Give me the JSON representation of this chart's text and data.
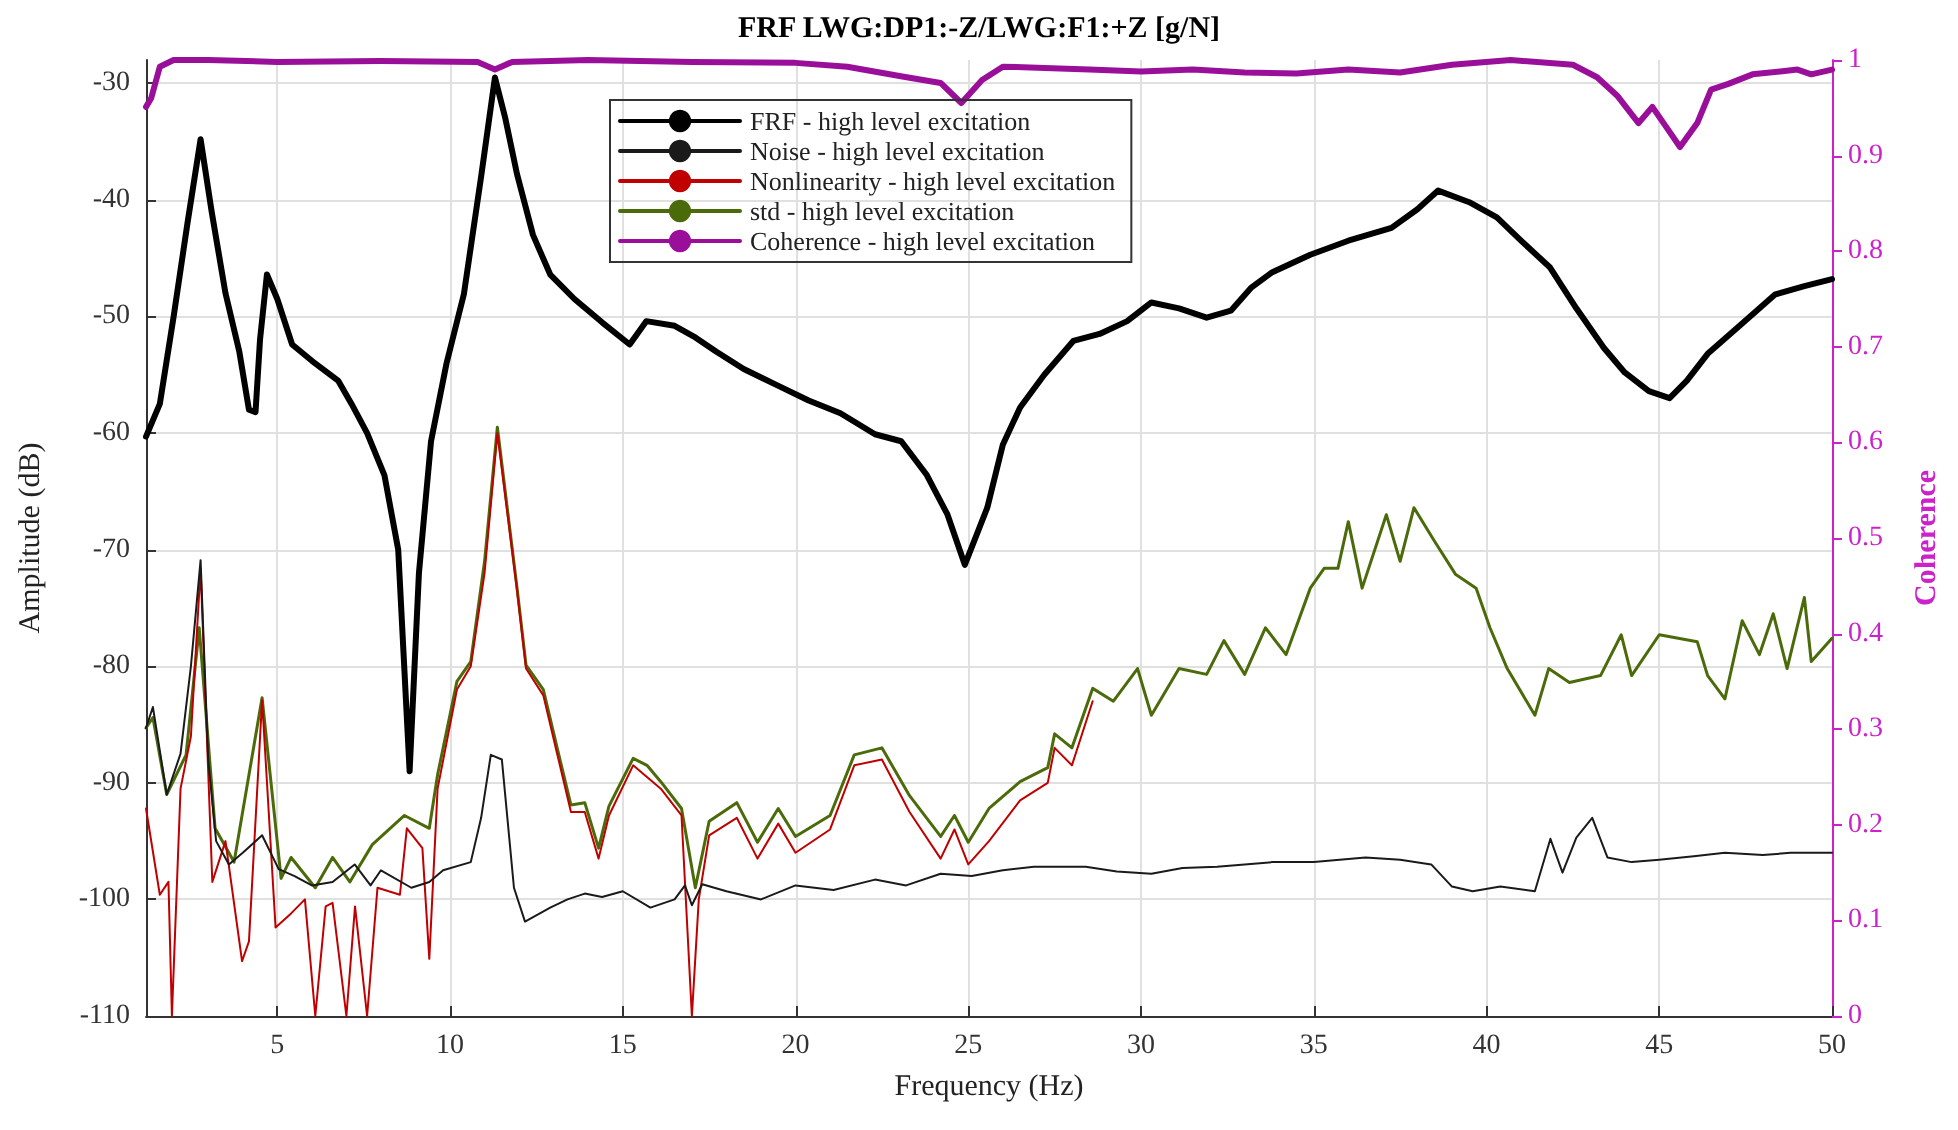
{
  "chart_data": {
    "type": "line",
    "title": "FRF LWG:DP1:-Z/LWG:F1:+Z [g/N]",
    "xlabel": "Frequency (Hz)",
    "ylabel": "Amplitude (dB)",
    "y2label": "Coherence",
    "xlim": [
      1.2,
      50
    ],
    "xticks": [
      5,
      10,
      15,
      20,
      25,
      30,
      35,
      40,
      45,
      50
    ],
    "ylim": [
      -110,
      -28
    ],
    "yticks": [
      -110,
      -100,
      -90,
      -80,
      -70,
      -60,
      -50,
      -40,
      -30
    ],
    "y2lim": [
      0,
      1
    ],
    "y2ticks": [
      0,
      0.1,
      0.2,
      0.3,
      0.4,
      0.5,
      0.6,
      0.7,
      0.8,
      0.9,
      1
    ],
    "grid": true,
    "legend": "top",
    "marker": "none",
    "line_style": "solid",
    "series": [
      {
        "name": "FRF - high level excitation",
        "color": "#000000",
        "x": [
          1.2,
          1.6,
          2.0,
          2.4,
          2.78,
          3.1,
          3.5,
          3.9,
          4.18,
          4.37,
          4.5,
          4.7,
          5.0,
          5.43,
          6.0,
          6.76,
          7.15,
          7.6,
          8.1,
          8.5,
          8.83,
          9.1,
          9.45,
          9.9,
          10.4,
          10.9,
          11.3,
          11.6,
          11.94,
          12.4,
          12.9,
          13.6,
          14.4,
          15.2,
          15.68,
          16.5,
          17.1,
          17.7,
          18.5,
          19.4,
          20.38,
          21.3,
          22.3,
          23.06,
          23.8,
          24.4,
          24.9,
          25.55,
          26.0,
          26.5,
          27.2,
          28.04,
          28.8,
          29.6,
          30.3,
          31.1,
          31.9,
          32.6,
          33.2,
          33.8,
          34.9,
          36.0,
          37.25,
          38.0,
          38.6,
          39.5,
          40.3,
          41.0,
          41.84,
          42.6,
          43.4,
          44.0,
          44.7,
          45.3,
          45.8,
          46.4,
          47.4,
          48.36,
          49.2,
          50.0
        ],
        "values": [
          -60.3,
          -57.5,
          -50,
          -42,
          -34.8,
          -41,
          -48,
          -53,
          -58,
          -58.2,
          -52,
          -46.4,
          -48.5,
          -52.4,
          -53.8,
          -55.5,
          -57.5,
          -60,
          -63.6,
          -70,
          -89,
          -72,
          -60.7,
          -54,
          -48.1,
          -38,
          -29.5,
          -33,
          -37.8,
          -43,
          -46.4,
          -48.5,
          -50.5,
          -52.4,
          -50.4,
          -50.8,
          -51.8,
          -53,
          -54.5,
          -55.8,
          -57.2,
          -58.3,
          -60.1,
          -60.7,
          -63.6,
          -67,
          -71.3,
          -66.4,
          -61,
          -57.8,
          -55,
          -52.1,
          -51.5,
          -50.4,
          -48.8,
          -49.3,
          -50.1,
          -49.5,
          -47.5,
          -46.2,
          -44.7,
          -43.5,
          -42.4,
          -40.8,
          -39.2,
          -40.2,
          -41.5,
          -43.5,
          -45.8,
          -49.3,
          -52.7,
          -54.8,
          -56.4,
          -57,
          -55.5,
          -53.2,
          -50.6,
          -48.1,
          -47.4,
          -46.8
        ]
      },
      {
        "name": "Noise - high level excitation",
        "color": "#1a1a1a",
        "x": [
          1.2,
          1.4,
          1.8,
          2.2,
          2.5,
          2.78,
          3.0,
          3.23,
          3.6,
          4.0,
          4.56,
          5.04,
          5.5,
          6.0,
          6.6,
          7.24,
          7.7,
          8.0,
          8.88,
          9.4,
          9.8,
          10.6,
          10.9,
          11.18,
          11.5,
          11.85,
          12.17,
          12.9,
          13.4,
          13.9,
          14.4,
          15.0,
          15.8,
          16.5,
          16.8,
          17.0,
          17.3,
          18.0,
          19.0,
          20.0,
          21.1,
          22.3,
          23.2,
          24.2,
          25.1,
          26.0,
          26.9,
          28.4,
          29.3,
          30.3,
          31.2,
          32.2,
          33.0,
          33.8,
          35.0,
          36.5,
          37.5,
          38.4,
          39.0,
          39.6,
          40.4,
          41.4,
          41.85,
          42.2,
          42.6,
          43.06,
          43.5,
          44.2,
          45.0,
          46.0,
          46.9,
          48.0,
          48.8,
          50.0
        ],
        "values": [
          -85.3,
          -83.5,
          -91,
          -87.5,
          -80,
          -70.9,
          -88,
          -95,
          -97,
          -96,
          -94.5,
          -97.4,
          -98,
          -98.8,
          -98.5,
          -97,
          -98.8,
          -97.5,
          -99,
          -98.5,
          -97.5,
          -96.8,
          -93,
          -87.6,
          -88,
          -99,
          -101.9,
          -100.7,
          -100,
          -99.5,
          -99.8,
          -99.3,
          -100.7,
          -100,
          -98.8,
          -100.5,
          -98.7,
          -99.3,
          -100,
          -98.8,
          -99.2,
          -98.3,
          -98.8,
          -97.8,
          -98,
          -97.5,
          -97.2,
          -97.2,
          -97.6,
          -97.8,
          -97.3,
          -97.2,
          -97,
          -96.8,
          -96.8,
          -96.4,
          -96.6,
          -97,
          -98.9,
          -99.3,
          -98.9,
          -99.3,
          -94.8,
          -97.7,
          -94.7,
          -93,
          -96.4,
          -96.8,
          -96.6,
          -96.3,
          -96,
          -96.2,
          -96,
          -96
        ]
      },
      {
        "name": "Nonlinearity - high level excitation",
        "color": "#c00000",
        "x": [
          1.2,
          1.6,
          1.85,
          1.95,
          2.2,
          2.5,
          2.78,
          3.12,
          3.5,
          3.98,
          4.18,
          4.56,
          4.95,
          5.4,
          5.8,
          6.1,
          6.4,
          6.6,
          7.0,
          7.25,
          7.6,
          7.9,
          8.55,
          8.75,
          9.2,
          9.4,
          9.64,
          10.2,
          10.6,
          11.0,
          11.37,
          11.94,
          12.2,
          12.7,
          13.1,
          13.5,
          13.9,
          14.3,
          14.6,
          15.3,
          15.7,
          16.1,
          16.7,
          17.0,
          17.2,
          17.5,
          18.3,
          18.9,
          19.5,
          20.0,
          21.0,
          21.7,
          22.5,
          23.3,
          24.2,
          24.6,
          25.0,
          25.6,
          26.5,
          27.3,
          27.5,
          28.0,
          28.6
        ],
        "values": [
          -92.2,
          -99.6,
          -98.5,
          -110,
          -90.5,
          -86,
          -71.6,
          -98.5,
          -95,
          -105.3,
          -103.6,
          -82.9,
          -102.4,
          -101.2,
          -100,
          -110,
          -100.6,
          -100.3,
          -110,
          -100.6,
          -110,
          -99,
          -99.6,
          -93.9,
          -95.6,
          -105.1,
          -90.5,
          -82,
          -80,
          -72,
          -60,
          -73.5,
          -80.2,
          -82.5,
          -87.5,
          -92.5,
          -92.5,
          -96.5,
          -92.8,
          -88.5,
          -89.5,
          -90.5,
          -92.8,
          -110,
          -100,
          -94.5,
          -93,
          -96.5,
          -93.5,
          -96,
          -94,
          -88.5,
          -88,
          -92.5,
          -96.5,
          -94,
          -97,
          -95,
          -91.5,
          -90,
          -87,
          -88.5,
          -83
        ]
      },
      {
        "name": "std - high level excitation",
        "color": "#4b6b0a",
        "x": [
          1.2,
          1.4,
          1.8,
          2.36,
          2.74,
          3.2,
          3.75,
          4.56,
          5.11,
          5.4,
          6.1,
          6.6,
          7.1,
          7.75,
          8.68,
          9.4,
          9.64,
          10.2,
          10.6,
          11.0,
          11.37,
          11.94,
          12.2,
          12.7,
          13.1,
          13.5,
          13.9,
          14.3,
          14.6,
          15.3,
          15.7,
          16.1,
          16.7,
          17.1,
          17.5,
          18.3,
          18.9,
          19.5,
          20.0,
          21.0,
          21.7,
          22.5,
          23.3,
          24.2,
          24.6,
          25.0,
          25.6,
          26.5,
          27.3,
          27.5,
          28.0,
          28.6,
          29.2,
          29.9,
          30.3,
          31.1,
          31.9,
          32.4,
          33.0,
          33.6,
          34.2,
          34.9,
          35.3,
          35.7,
          36.0,
          36.4,
          37.1,
          37.5,
          37.9,
          38.5,
          39.1,
          39.7,
          40.1,
          40.6,
          41.4,
          41.8,
          42.4,
          43.3,
          43.9,
          44.2,
          45.0,
          46.1,
          46.4,
          46.9,
          47.4,
          47.9,
          48.3,
          48.7,
          49.2,
          49.4,
          50.0
        ],
        "values": [
          -85.3,
          -84.4,
          -91,
          -87.6,
          -76.7,
          -93.9,
          -96.8,
          -82.7,
          -98.2,
          -96.4,
          -99,
          -96.4,
          -98.5,
          -95.3,
          -92.8,
          -93.9,
          -89.3,
          -81.3,
          -79.6,
          -71,
          -59.5,
          -73.3,
          -79.9,
          -82,
          -87,
          -91.9,
          -91.7,
          -95.6,
          -92,
          -87.9,
          -88.5,
          -89.9,
          -92.2,
          -99,
          -93.3,
          -91.7,
          -95.1,
          -92.2,
          -94.6,
          -92.8,
          -87.6,
          -87,
          -91.1,
          -94.6,
          -92.8,
          -95.1,
          -92.2,
          -89.9,
          -88.7,
          -85.8,
          -87,
          -81.9,
          -83,
          -80.2,
          -84.2,
          -80.2,
          -80.7,
          -77.8,
          -80.7,
          -76.7,
          -79,
          -73.3,
          -71.6,
          -71.6,
          -67.6,
          -73.3,
          -67,
          -71,
          -66.4,
          -69.3,
          -72.1,
          -73.3,
          -76.7,
          -80.2,
          -84.2,
          -80.2,
          -81.4,
          -80.8,
          -77.3,
          -80.8,
          -77.3,
          -77.9,
          -80.8,
          -82.8,
          -76.1,
          -79,
          -75.5,
          -80.2,
          -74.1,
          -79.6,
          -77.6
        ]
      },
      {
        "name": "Coherence - high level excitation",
        "color": "#9a0f9a",
        "axis": "y2",
        "x": [
          1.2,
          1.35,
          1.6,
          2.0,
          3.0,
          5.0,
          8.0,
          10.8,
          11.3,
          11.8,
          14.0,
          17.0,
          20.0,
          21.5,
          23.05,
          24.2,
          24.8,
          25.4,
          26.0,
          27.0,
          28.5,
          30.0,
          31.5,
          33.0,
          34.5,
          36.0,
          37.5,
          39.0,
          40.7,
          42.5,
          43.2,
          43.8,
          44.4,
          44.8,
          45.2,
          45.6,
          46.1,
          46.5,
          47.0,
          47.7,
          48.5,
          49.0,
          49.4,
          50.0
        ],
        "values": [
          0.951,
          0.96,
          0.993,
          1.0,
          1.0,
          0.998,
          0.999,
          0.998,
          0.99,
          0.998,
          1.0,
          0.998,
          0.997,
          0.993,
          0.983,
          0.976,
          0.955,
          0.979,
          0.993,
          0.992,
          0.99,
          0.988,
          0.99,
          0.987,
          0.986,
          0.99,
          0.987,
          0.995,
          1.0,
          0.995,
          0.982,
          0.962,
          0.934,
          0.951,
          0.93,
          0.909,
          0.934,
          0.969,
          0.975,
          0.985,
          0.988,
          0.99,
          0.985,
          0.99
        ]
      }
    ]
  }
}
